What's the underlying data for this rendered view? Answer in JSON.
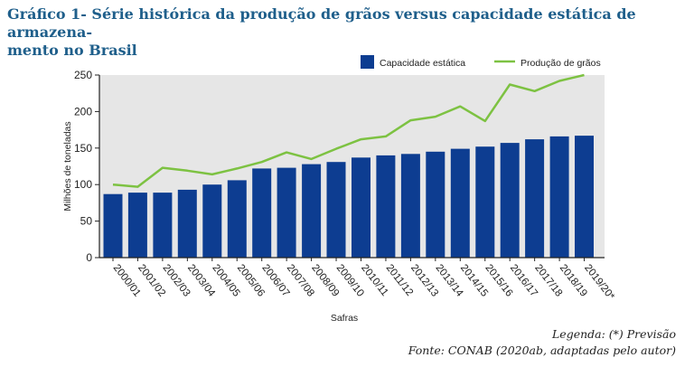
{
  "title": "Gráfico 1- Série histórica da produção de grãos versus capacidade estática de armazena-mento no Brasil",
  "title_line1": "Gráfico 1- Série histórica da produção de grãos versus capacidade estática de armazena-",
  "title_line2": "mento no Brasil",
  "legenda": "Legenda: (*) Previsão",
  "fonte": "Fonte: CONAB (2020ab, adaptadas pelo autor)",
  "colors": {
    "bar": "#0d3d91",
    "line": "#7dc242",
    "plot_bg": "#e6e6e6"
  },
  "chart_data": {
    "type": "bar",
    "categories": [
      "2000/01",
      "2001/02",
      "2002/03",
      "2003/04",
      "2004/05",
      "2005/06",
      "2006/07",
      "2007/08",
      "2008/09",
      "2009/10",
      "2010/11",
      "2011/12",
      "2012/13",
      "2013/14",
      "2014/15",
      "2015/16",
      "2016/17",
      "2017/18",
      "2018/19",
      "2019/20*"
    ],
    "series": [
      {
        "name": "Capacidade estática",
        "type": "bar",
        "values": [
          87,
          89,
          89,
          93,
          100,
          106,
          122,
          123,
          128,
          131,
          137,
          140,
          142,
          145,
          149,
          152,
          157,
          162,
          166,
          167
        ]
      },
      {
        "name": "Produção de grãos",
        "type": "line",
        "values": [
          100,
          97,
          123,
          119,
          114,
          122,
          131,
          144,
          135,
          149,
          162,
          166,
          188,
          193,
          207,
          187,
          237,
          228,
          242,
          250
        ]
      }
    ],
    "xlabel": "Safras",
    "ylabel": "Milhões de toneladas",
    "ylim": [
      0,
      250
    ],
    "yticks": [
      0,
      50,
      100,
      150,
      200,
      250
    ],
    "grid": false,
    "legend_position": "top-right"
  }
}
